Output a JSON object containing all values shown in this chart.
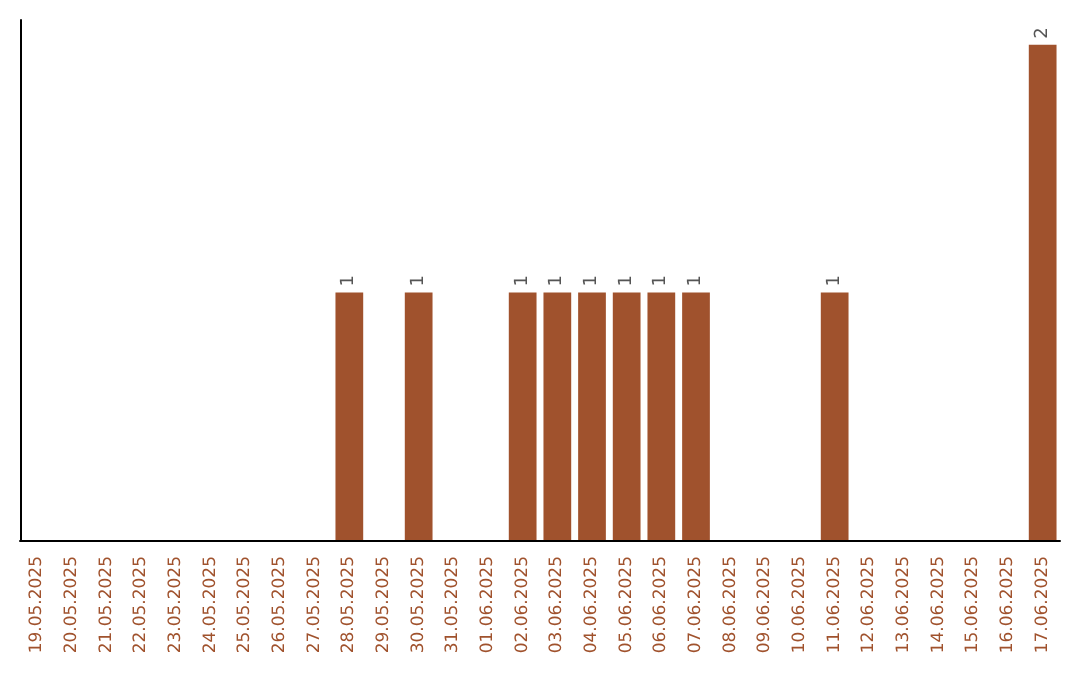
{
  "chart_data": {
    "type": "bar",
    "categories": [
      "19.05.2025",
      "20.05.2025",
      "21.05.2025",
      "22.05.2025",
      "23.05.2025",
      "24.05.2025",
      "25.05.2025",
      "26.05.2025",
      "27.05.2025",
      "28.05.2025",
      "29.05.2025",
      "30.05.2025",
      "31.05.2025",
      "01.06.2025",
      "02.06.2025",
      "03.06.2025",
      "04.06.2025",
      "05.06.2025",
      "06.06.2025",
      "07.06.2025",
      "08.06.2025",
      "09.06.2025",
      "10.06.2025",
      "11.06.2025",
      "12.06.2025",
      "13.06.2025",
      "14.06.2025",
      "15.06.2025",
      "16.06.2025",
      "17.06.2025"
    ],
    "values": [
      0,
      0,
      0,
      0,
      0,
      0,
      0,
      0,
      0,
      1,
      0,
      1,
      0,
      0,
      1,
      1,
      1,
      1,
      1,
      1,
      0,
      0,
      0,
      1,
      0,
      0,
      0,
      0,
      0,
      2
    ],
    "value_labels": [
      null,
      null,
      null,
      null,
      null,
      null,
      null,
      null,
      null,
      "1",
      null,
      "1",
      null,
      null,
      "1",
      "1",
      "1",
      "1",
      "1",
      "1",
      null,
      null,
      null,
      "1",
      null,
      null,
      null,
      null,
      null,
      "2"
    ],
    "color": "#a0522d",
    "grid": false,
    "tick_labels": "x"
  }
}
